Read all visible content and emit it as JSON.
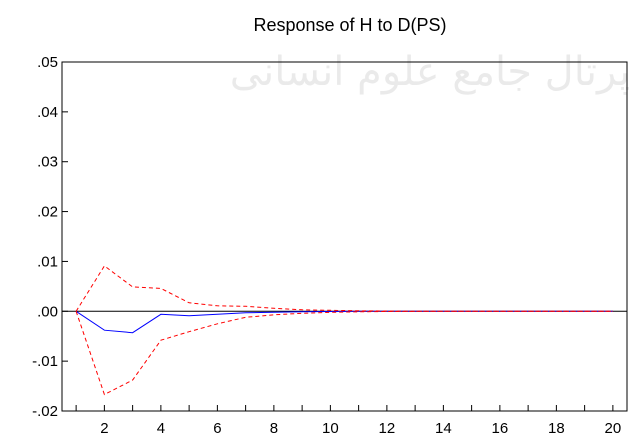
{
  "chart_data": {
    "type": "line",
    "title": "Response of H to D(PS)",
    "xlabel": "",
    "ylabel": "",
    "xlim": [
      0.5,
      20.5
    ],
    "ylim": [
      -0.02,
      0.05
    ],
    "x_tick_values": [
      2,
      4,
      6,
      8,
      10,
      12,
      14,
      16,
      18,
      20
    ],
    "x_tick_labels": [
      "2",
      "4",
      "6",
      "8",
      "10",
      "12",
      "14",
      "16",
      "18",
      "20"
    ],
    "y_tick_values": [
      0.05,
      0.04,
      0.03,
      0.02,
      0.01,
      0.0,
      -0.01,
      -0.02
    ],
    "y_tick_labels": [
      ".05",
      ".04",
      ".03",
      ".02",
      ".01",
      ".00",
      "-.01",
      "-.02"
    ],
    "x": [
      1,
      2,
      3,
      4,
      5,
      6,
      7,
      8,
      9,
      10,
      11,
      12,
      13,
      14,
      15,
      16,
      17,
      18,
      19,
      20
    ],
    "series": [
      {
        "values": [
          0.0,
          -0.0038,
          -0.0043,
          -0.0006,
          -0.0009,
          -0.0006,
          -0.0003,
          -0.0002,
          -0.0001,
          -5e-05,
          0,
          0,
          0,
          0,
          0,
          0,
          0,
          0,
          0,
          0
        ],
        "color": "#0000ff",
        "style": "solid"
      },
      {
        "values": [
          0.0,
          0.0091,
          0.0049,
          0.0046,
          0.0017,
          0.0011,
          0.001,
          0.0006,
          0.0003,
          0.0002,
          0.0001,
          5e-05,
          0,
          0,
          0,
          0,
          0,
          0,
          0,
          0
        ],
        "color": "#ff0000",
        "style": "dashed"
      },
      {
        "values": [
          0.0,
          -0.0167,
          -0.0138,
          -0.0058,
          -0.0041,
          -0.0025,
          -0.0012,
          -0.0007,
          -0.0004,
          -0.0002,
          -0.0001,
          -5e-05,
          0,
          0,
          0,
          0,
          0,
          0,
          0,
          0
        ],
        "color": "#ff0000",
        "style": "dashed"
      }
    ],
    "zero_line": true,
    "grid": false,
    "watermark": "پرتال جامع علوم انسانی"
  }
}
